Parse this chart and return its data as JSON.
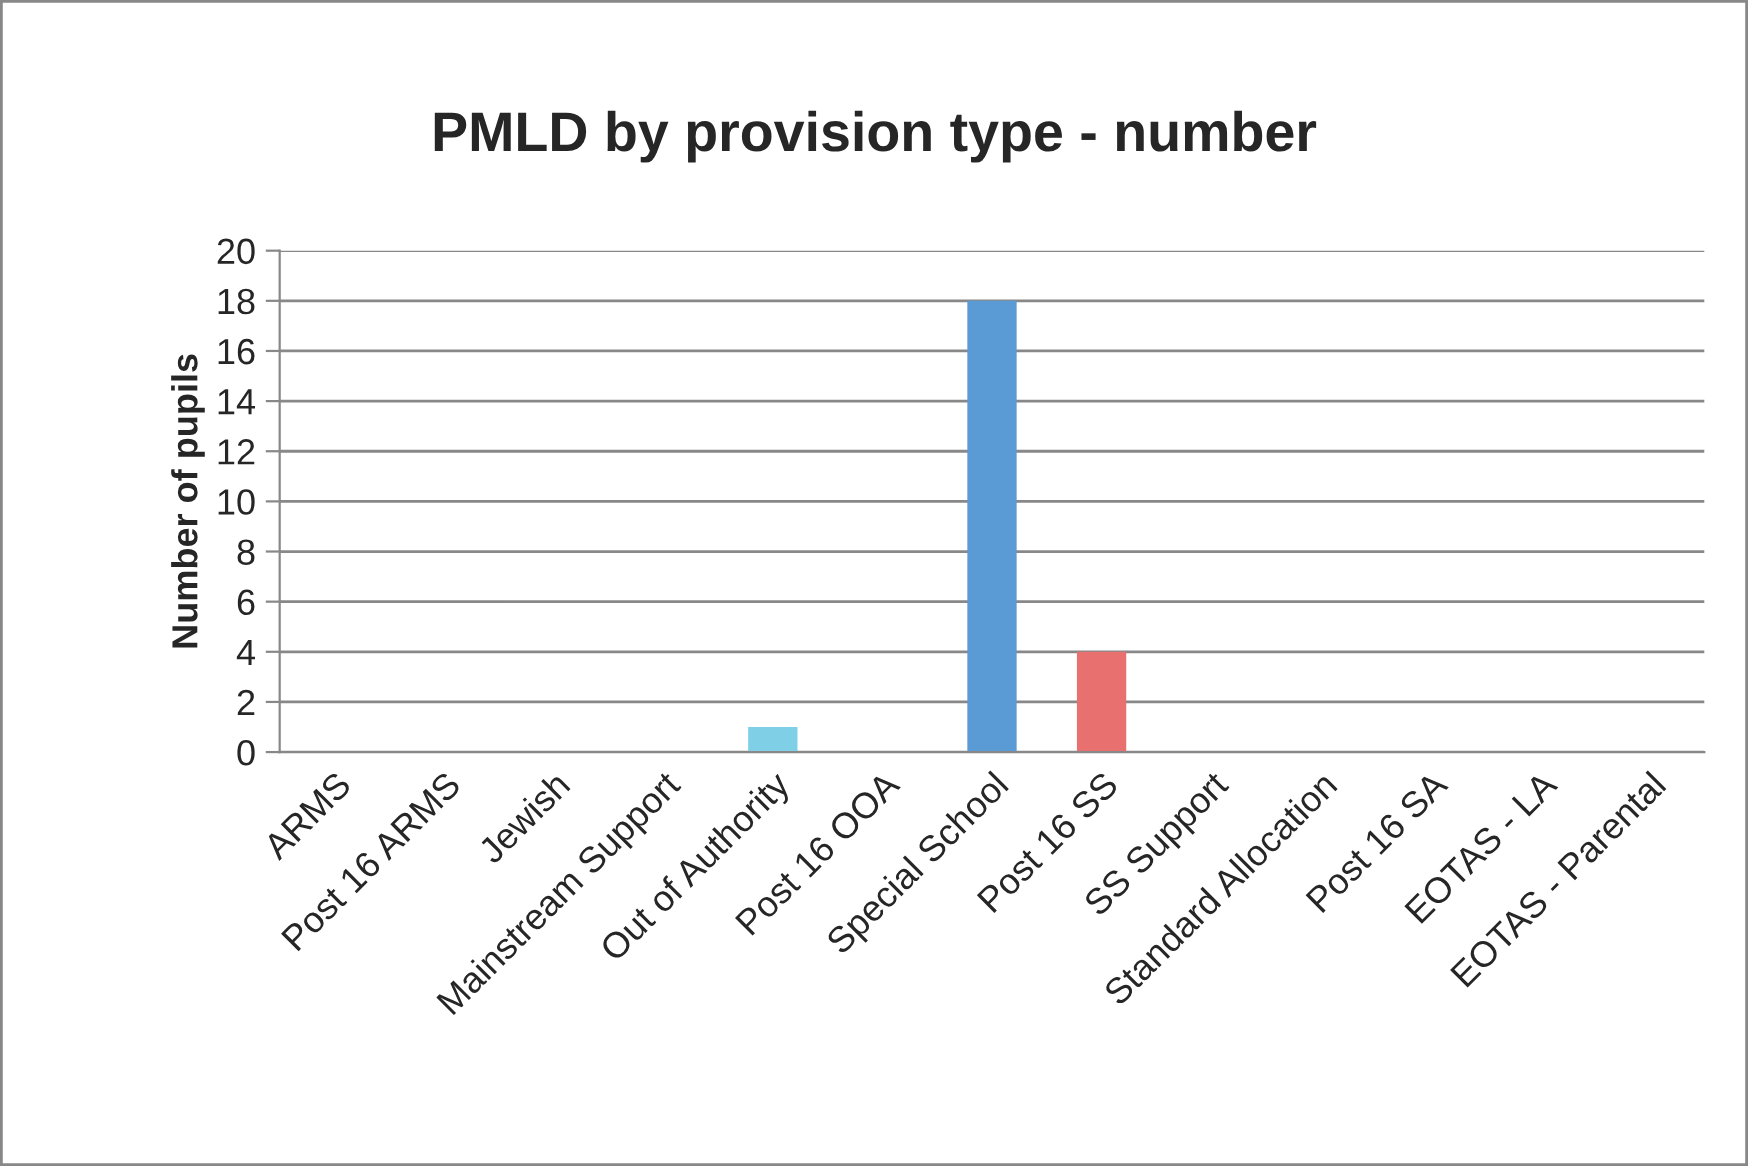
{
  "chart_data": {
    "type": "bar",
    "title": "PMLD by provision type - number",
    "ylabel": "Number of pupils",
    "categories": [
      "ARMS",
      "Post 16 ARMS",
      "Jewish",
      "Mainstream Support",
      "Out of Authority",
      "Post 16 OOA",
      "Special School",
      "Post 16 SS",
      "SS Support",
      "Standard Allocation",
      "Post 16 SA",
      "EOTAS - LA",
      "EOTAS - Parental"
    ],
    "values": [
      0,
      0,
      0,
      0,
      1,
      0,
      18,
      4,
      0,
      0,
      0,
      0,
      0
    ],
    "colors": [
      "#5b9bd5",
      "#5b9bd5",
      "#5b9bd5",
      "#5b9bd5",
      "#7fd0e6",
      "#5b9bd5",
      "#5b9bd5",
      "#e8716f",
      "#5b9bd5",
      "#5b9bd5",
      "#5b9bd5",
      "#5b9bd5",
      "#5b9bd5"
    ],
    "ylim": [
      0,
      20
    ],
    "yticks": [
      0,
      2,
      4,
      6,
      8,
      10,
      12,
      14,
      16,
      18,
      20
    ],
    "grid": "y",
    "legend": false
  }
}
